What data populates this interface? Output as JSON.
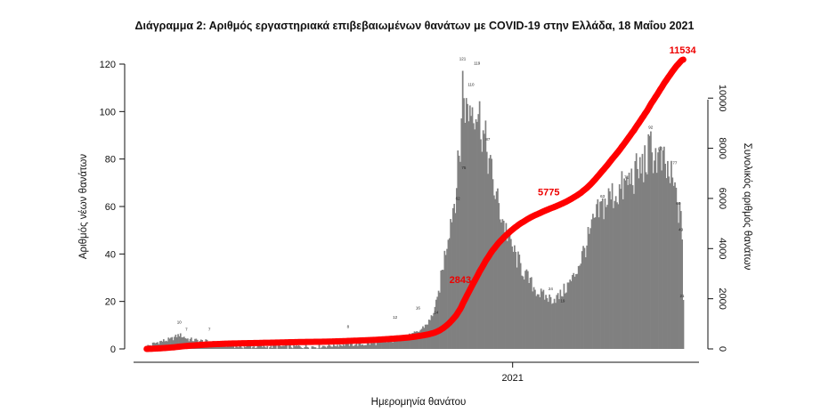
{
  "chart_data": {
    "type": "bar",
    "title": "Διάγραμμα 2: Αριθμός εργαστηριακά επιβεβαιωμένων θανάτων με COVID-19 στην Ελλάδα, 18 Μαΐου 2021",
    "xlabel": "Ημερομηνία θανάτου",
    "ylabel": "Αριθμός νέων θανάτων",
    "y2label": "Συνολικός αριθμός θανάτων",
    "x_tick_labels": [
      "2021"
    ],
    "x_tick_index": 304,
    "ylim": [
      0,
      120
    ],
    "y_ticks": [
      "0",
      "20",
      "40",
      "60",
      "80",
      "100",
      "120"
    ],
    "y2lim": [
      0,
      12000
    ],
    "y2_ticks": [
      "0",
      "2000",
      "4000",
      "6000",
      "8000",
      "10000"
    ],
    "bar_color": "#808080",
    "line_color": "#ff0000",
    "annotation_color": "#ee0000",
    "peak_labels": [
      {
        "index": 262,
        "text": "121"
      },
      {
        "index": 274,
        "text": "119"
      },
      {
        "index": 269,
        "text": "110"
      },
      {
        "index": 283,
        "text": "87"
      },
      {
        "index": 263,
        "text": "75"
      },
      {
        "index": 258,
        "text": "62"
      },
      {
        "index": 418,
        "text": "92"
      },
      {
        "index": 426,
        "text": "83"
      },
      {
        "index": 438,
        "text": "77"
      },
      {
        "index": 378,
        "text": "63"
      },
      {
        "index": 398,
        "text": "71"
      },
      {
        "index": 335,
        "text": "24"
      },
      {
        "index": 345,
        "text": "19"
      },
      {
        "index": 441,
        "text": "60"
      },
      {
        "index": 443,
        "text": "49"
      },
      {
        "index": 27,
        "text": "10"
      },
      {
        "index": 33,
        "text": "7"
      },
      {
        "index": 52,
        "text": "7"
      },
      {
        "index": 167,
        "text": "8"
      },
      {
        "index": 206,
        "text": "12"
      },
      {
        "index": 225,
        "text": "16"
      },
      {
        "index": 240,
        "text": "14"
      },
      {
        "index": 444,
        "text": "21"
      }
    ],
    "cumulative_annotations": [
      {
        "index": 274,
        "value": 2843,
        "label": "2843"
      },
      {
        "index": 334,
        "value": 5775,
        "label": "5775"
      },
      {
        "index": 445,
        "value": 11534,
        "label": "11534"
      }
    ]
  }
}
